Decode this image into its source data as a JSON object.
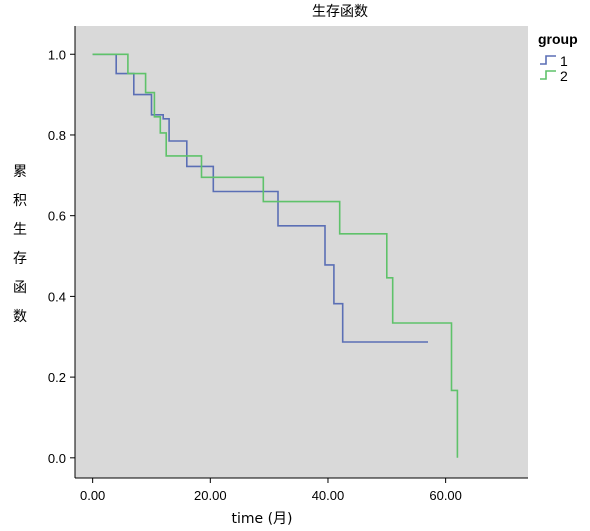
{
  "chart_data": {
    "type": "line",
    "step": true,
    "title": "生存函数",
    "xlabel": "time (月)",
    "ylabel": "累积生存函数",
    "xlim": [
      -3,
      74
    ],
    "ylim": [
      -0.05,
      1.07
    ],
    "xticks": [
      0,
      20,
      40,
      60
    ],
    "xtick_labels": [
      "0.00",
      "20.00",
      "40.00",
      "60.00"
    ],
    "yticks": [
      0,
      0.2,
      0.4,
      0.6,
      0.8,
      1.0
    ],
    "ytick_labels": [
      "0.0",
      "0.2",
      "0.4",
      "0.6",
      "0.8",
      "1.0"
    ],
    "grid": false,
    "plot_background": "#d9d9d9",
    "legend": {
      "title": "group",
      "position": "right-top"
    },
    "series": [
      {
        "name": "1",
        "color": "#5b6fb5",
        "points": [
          [
            0,
            1.0
          ],
          [
            4,
            1.0
          ],
          [
            4,
            0.952
          ],
          [
            7,
            0.952
          ],
          [
            7,
            0.9
          ],
          [
            10,
            0.9
          ],
          [
            10,
            0.85
          ],
          [
            12,
            0.85
          ],
          [
            12,
            0.84
          ],
          [
            13,
            0.84
          ],
          [
            13,
            0.785
          ],
          [
            16,
            0.785
          ],
          [
            16,
            0.722
          ],
          [
            20.5,
            0.722
          ],
          [
            20.5,
            0.66
          ],
          [
            31.5,
            0.66
          ],
          [
            31.5,
            0.575
          ],
          [
            39.5,
            0.575
          ],
          [
            39.5,
            0.478
          ],
          [
            41,
            0.478
          ],
          [
            41,
            0.382
          ],
          [
            42.5,
            0.382
          ],
          [
            42.5,
            0.287
          ],
          [
            57,
            0.287
          ]
        ]
      },
      {
        "name": "2",
        "color": "#5fc26a",
        "points": [
          [
            0,
            1.0
          ],
          [
            6,
            1.0
          ],
          [
            6,
            0.952
          ],
          [
            9,
            0.952
          ],
          [
            9,
            0.905
          ],
          [
            10.5,
            0.905
          ],
          [
            10.5,
            0.845
          ],
          [
            11.5,
            0.845
          ],
          [
            11.5,
            0.805
          ],
          [
            12.5,
            0.805
          ],
          [
            12.5,
            0.748
          ],
          [
            18.5,
            0.748
          ],
          [
            18.5,
            0.695
          ],
          [
            29,
            0.695
          ],
          [
            29,
            0.635
          ],
          [
            42,
            0.635
          ],
          [
            42,
            0.555
          ],
          [
            50,
            0.555
          ],
          [
            50,
            0.446
          ],
          [
            51,
            0.446
          ],
          [
            51,
            0.334
          ],
          [
            61,
            0.334
          ],
          [
            61,
            0.167
          ],
          [
            62,
            0.167
          ],
          [
            62,
            0.0
          ]
        ]
      }
    ]
  }
}
